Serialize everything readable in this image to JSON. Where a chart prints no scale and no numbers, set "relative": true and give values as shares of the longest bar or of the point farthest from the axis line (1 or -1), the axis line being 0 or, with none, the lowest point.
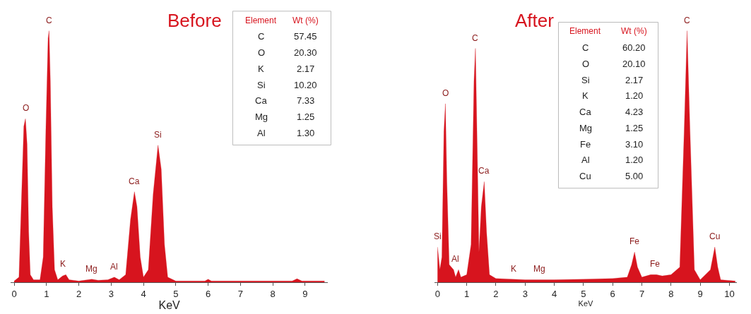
{
  "chart_data": [
    {
      "type": "area",
      "title": "Before",
      "xlabel": "KeV",
      "relative": true,
      "xlim": [
        -0.1,
        9.7
      ],
      "xticks": [
        0,
        1,
        2,
        3,
        4,
        5,
        6,
        7,
        8,
        9
      ],
      "series": [
        {
          "color": "#d7141e",
          "x": [
            0,
            0.15,
            0.22,
            0.3,
            0.35,
            0.4,
            0.45,
            0.5,
            0.6,
            0.8,
            0.9,
            0.98,
            1.05,
            1.08,
            1.12,
            1.18,
            1.25,
            1.35,
            1.5,
            1.6,
            1.7,
            2.0,
            2.4,
            2.6,
            2.9,
            3.1,
            3.25,
            3.45,
            3.6,
            3.72,
            3.8,
            3.9,
            4.0,
            4.15,
            4.3,
            4.45,
            4.55,
            4.65,
            4.75,
            5.0,
            5.9,
            6.0,
            6.1,
            8.6,
            8.75,
            8.9,
            9.6
          ],
          "values": [
            0.005,
            0.02,
            0.3,
            0.62,
            0.65,
            0.55,
            0.2,
            0.03,
            0.01,
            0.01,
            0.1,
            0.6,
            0.97,
            1.0,
            0.8,
            0.3,
            0.05,
            0.01,
            0.025,
            0.03,
            0.01,
            0.005,
            0.012,
            0.008,
            0.01,
            0.02,
            0.01,
            0.03,
            0.25,
            0.36,
            0.3,
            0.1,
            0.02,
            0.05,
            0.35,
            0.545,
            0.45,
            0.15,
            0.02,
            0.005,
            0.005,
            0.012,
            0.005,
            0.005,
            0.014,
            0.005,
            0.005
          ]
        }
      ],
      "annotations": [
        {
          "text": "O",
          "x": 0.35,
          "y": 0.65
        },
        {
          "text": "C",
          "x": 1.08,
          "y": 1.0
        },
        {
          "text": "K",
          "x": 1.5,
          "y": 0.03
        },
        {
          "text": "Mg",
          "x": 2.4,
          "y": 0.012
        },
        {
          "text": "Al",
          "x": 3.1,
          "y": 0.02
        },
        {
          "text": "Ca",
          "x": 3.72,
          "y": 0.36
        },
        {
          "text": "Si",
          "x": 4.45,
          "y": 0.545
        },
        "Element",
        "Wt (%)",
        "C",
        "57.45",
        "O",
        "20.30",
        "K",
        "2.17",
        "Si",
        "10.20",
        "Ca",
        "7.33",
        "Mg",
        "1.25",
        "Al",
        "1.30"
      ]
    },
    {
      "type": "area",
      "title": "After",
      "xlabel": "KeV",
      "relative": true,
      "xlim": [
        -0.1,
        10.25
      ],
      "xticks": [
        0,
        1,
        2,
        3,
        4,
        5,
        6,
        7,
        8,
        9,
        10
      ],
      "series": [
        {
          "color": "#d7141e",
          "x": [
            0,
            0.08,
            0.15,
            0.22,
            0.27,
            0.32,
            0.4,
            0.55,
            0.62,
            0.72,
            0.8,
            1.0,
            1.15,
            1.25,
            1.3,
            1.35,
            1.42,
            1.5,
            1.6,
            1.68,
            1.78,
            2.0,
            3.0,
            4.0,
            5.0,
            6.0,
            6.5,
            6.65,
            6.75,
            6.85,
            7.0,
            7.3,
            7.5,
            7.7,
            8.0,
            8.3,
            8.45,
            8.55,
            8.65,
            8.8,
            9.0,
            9.35,
            9.5,
            9.6,
            9.7,
            10.2
          ],
          "values": [
            0.14,
            0.05,
            0.1,
            0.6,
            0.71,
            0.4,
            0.07,
            0.05,
            0.02,
            0.05,
            0.02,
            0.03,
            0.15,
            0.8,
            0.93,
            0.6,
            0.12,
            0.3,
            0.4,
            0.2,
            0.03,
            0.015,
            0.01,
            0.01,
            0.012,
            0.015,
            0.02,
            0.07,
            0.12,
            0.06,
            0.02,
            0.03,
            0.03,
            0.025,
            0.03,
            0.06,
            0.6,
            1.0,
            0.6,
            0.05,
            0.01,
            0.05,
            0.14,
            0.06,
            0.01,
            0.005
          ]
        }
      ],
      "annotations": [
        {
          "text": "Si",
          "x": 0,
          "y": 0.14
        },
        {
          "text": "O",
          "x": 0.27,
          "y": 0.71
        },
        {
          "text": "Al",
          "x": 0.62,
          "y": 0.05
        },
        {
          "text": "C",
          "x": 1.3,
          "y": 0.93
        },
        {
          "text": "Ca",
          "x": 1.6,
          "y": 0.4
        },
        {
          "text": "K",
          "x": 2.6,
          "y": 0.012
        },
        {
          "text": "Mg",
          "x": 3.5,
          "y": 0.01
        },
        {
          "text": "Fe",
          "x": 6.75,
          "y": 0.12
        },
        {
          "text": "Fe",
          "x": 7.45,
          "y": 0.03
        },
        {
          "text": "C",
          "x": 8.55,
          "y": 1.0
        },
        {
          "text": "Cu",
          "x": 9.5,
          "y": 0.14
        },
        "Element",
        "Wt (%)",
        "C",
        "60.20",
        "O",
        "20.10",
        "Si",
        "2.17",
        "K",
        "1.20",
        "Ca",
        "4.23",
        "Mg",
        "1.25",
        "Fe",
        "3.10",
        "Al",
        "1.20",
        "Cu",
        "5.00"
      ]
    }
  ]
}
